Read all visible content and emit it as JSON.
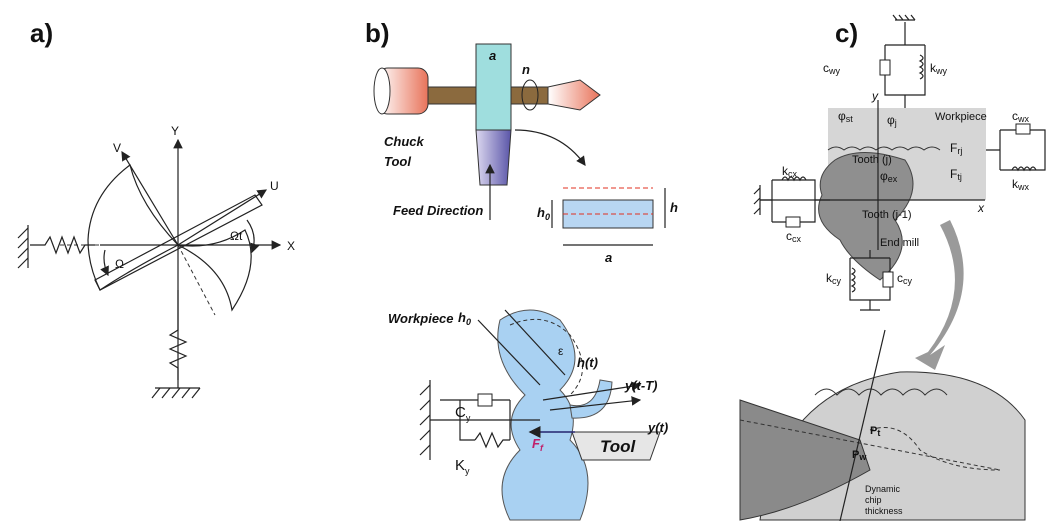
{
  "panel_a": {
    "label": "a)",
    "axis_y": "Y",
    "axis_x": "X",
    "axis_v": "V",
    "axis_u": "U",
    "angle": "Ωt",
    "rotation": "Ω"
  },
  "panel_b": {
    "label": "b)",
    "width_top": "a",
    "speed": "n",
    "chuck": "Chuck",
    "tool": "Tool",
    "feed": "Feed  Direction",
    "h0_base": "h",
    "h0_sub": "0",
    "height": "h",
    "width_bottom": "a",
    "workpiece": "Workpiece",
    "h0b_base": "h",
    "h0b_sub": "0",
    "epsilon": "ε",
    "ht": "h(t)",
    "ytT": "y(t-T)",
    "yt": "y(t)",
    "cy_base": "C",
    "cy_sub": "y",
    "ky_base": "K",
    "ky_sub": "y",
    "ff_base": "F",
    "ff_sub": "f",
    "tool2": "Tool"
  },
  "panel_c": {
    "label": "c)",
    "cwy_base": "c",
    "cwy_sub": "wy",
    "kwy_base": "k",
    "kwy_sub": "wy",
    "y": "y",
    "phist_base": "φ",
    "phist_sub": "st",
    "phij_base": "φ",
    "phij_sub": "j",
    "workpiece": "Workpiece",
    "cwx_base": "c",
    "cwx_sub": "wx",
    "kwx_base": "k",
    "kwx_sub": "wx",
    "frj_base": "F",
    "frj_sub": "rj",
    "ftj_base": "F",
    "ftj_sub": "tj",
    "tooth_j": "Tooth (j)",
    "kcx_base": "k",
    "kcx_sub": "cx",
    "phiex_base": "φ",
    "phiex_sub": "ex",
    "tooth_j1": "Tooth (j-1)",
    "x": "x",
    "ccx_base": "c",
    "ccx_sub": "cx",
    "end_mill": "End mill",
    "kcy_base": "k",
    "kcy_sub": "cy",
    "ccy_base": "c",
    "ccy_sub": "cy",
    "pt_base": "P",
    "pt_sub": "t",
    "pw_base": "P",
    "pw_sub": "w",
    "dyn1": "Dynamic",
    "dyn2": "chip",
    "dyn3": "thickness"
  }
}
